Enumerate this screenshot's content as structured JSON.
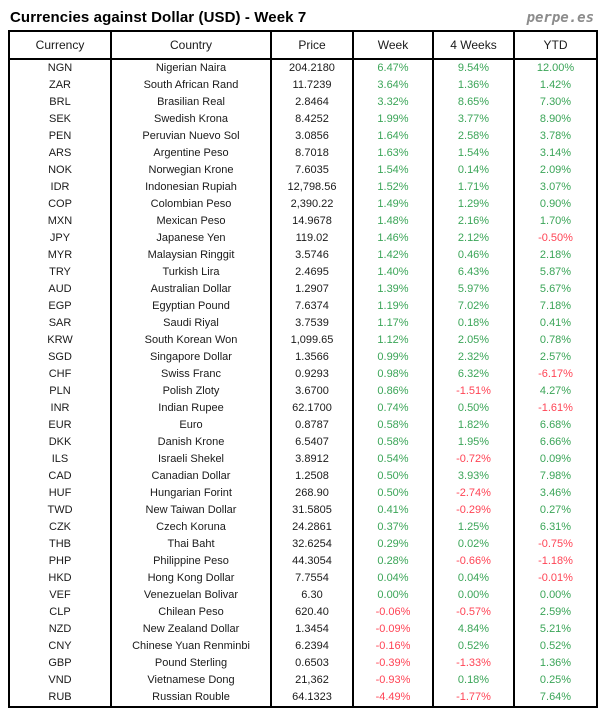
{
  "header": {
    "title": "Currencies against Dollar (USD) - Week 7",
    "brand": "perpe.es"
  },
  "colors": {
    "positive": "#3BA558",
    "negative": "#FF4455",
    "text": "#1A1A1A",
    "border": "#000000",
    "brand_gray": "#8C8C8C"
  },
  "chart_data": {
    "type": "table",
    "title": "Currencies against Dollar (USD) - Week 7",
    "columns": [
      "Currency",
      "Country",
      "Price",
      "Week",
      "4 Weeks",
      "YTD"
    ],
    "rows": [
      [
        "NGN",
        "Nigerian Naira",
        "204.2180",
        "6.47%",
        "9.54%",
        "12.00%"
      ],
      [
        "ZAR",
        "South African Rand",
        "11.7239",
        "3.64%",
        "1.36%",
        "1.42%"
      ],
      [
        "BRL",
        "Brasilian Real",
        "2.8464",
        "3.32%",
        "8.65%",
        "7.30%"
      ],
      [
        "SEK",
        "Swedish Krona",
        "8.4252",
        "1.99%",
        "3.77%",
        "8.90%"
      ],
      [
        "PEN",
        "Peruvian Nuevo Sol",
        "3.0856",
        "1.64%",
        "2.58%",
        "3.78%"
      ],
      [
        "ARS",
        "Argentine Peso",
        "8.7018",
        "1.63%",
        "1.54%",
        "3.14%"
      ],
      [
        "NOK",
        "Norwegian Krone",
        "7.6035",
        "1.54%",
        "0.14%",
        "2.09%"
      ],
      [
        "IDR",
        "Indonesian Rupiah",
        "12,798.56",
        "1.52%",
        "1.71%",
        "3.07%"
      ],
      [
        "COP",
        "Colombian Peso",
        "2,390.22",
        "1.49%",
        "1.29%",
        "0.90%"
      ],
      [
        "MXN",
        "Mexican Peso",
        "14.9678",
        "1.48%",
        "2.16%",
        "1.70%"
      ],
      [
        "JPY",
        "Japanese Yen",
        "119.02",
        "1.46%",
        "2.12%",
        "-0.50%"
      ],
      [
        "MYR",
        "Malaysian Ringgit",
        "3.5746",
        "1.42%",
        "0.46%",
        "2.18%"
      ],
      [
        "TRY",
        "Turkish Lira",
        "2.4695",
        "1.40%",
        "6.43%",
        "5.87%"
      ],
      [
        "AUD",
        "Australian Dollar",
        "1.2907",
        "1.39%",
        "5.97%",
        "5.67%"
      ],
      [
        "EGP",
        "Egyptian Pound",
        "7.6374",
        "1.19%",
        "7.02%",
        "7.18%"
      ],
      [
        "SAR",
        "Saudi Riyal",
        "3.7539",
        "1.17%",
        "0.18%",
        "0.41%"
      ],
      [
        "KRW",
        "South Korean Won",
        "1,099.65",
        "1.12%",
        "2.05%",
        "0.78%"
      ],
      [
        "SGD",
        "Singapore Dollar",
        "1.3566",
        "0.99%",
        "2.32%",
        "2.57%"
      ],
      [
        "CHF",
        "Swiss Franc",
        "0.9293",
        "0.98%",
        "6.32%",
        "-6.17%"
      ],
      [
        "PLN",
        "Polish Zloty",
        "3.6700",
        "0.86%",
        "-1.51%",
        "4.27%"
      ],
      [
        "INR",
        "Indian Rupee",
        "62.1700",
        "0.74%",
        "0.50%",
        "-1.61%"
      ],
      [
        "EUR",
        "Euro",
        "0.8787",
        "0.58%",
        "1.82%",
        "6.68%"
      ],
      [
        "DKK",
        "Danish Krone",
        "6.5407",
        "0.58%",
        "1.95%",
        "6.66%"
      ],
      [
        "ILS",
        "Israeli Shekel",
        "3.8912",
        "0.54%",
        "-0.72%",
        "0.09%"
      ],
      [
        "CAD",
        "Canadian Dollar",
        "1.2508",
        "0.50%",
        "3.93%",
        "7.98%"
      ],
      [
        "HUF",
        "Hungarian Forint",
        "268.90",
        "0.50%",
        "-2.74%",
        "3.46%"
      ],
      [
        "TWD",
        "New Taiwan Dollar",
        "31.5805",
        "0.41%",
        "-0.29%",
        "0.27%"
      ],
      [
        "CZK",
        "Czech Koruna",
        "24.2861",
        "0.37%",
        "1.25%",
        "6.31%"
      ],
      [
        "THB",
        "Thai Baht",
        "32.6254",
        "0.29%",
        "0.02%",
        "-0.75%"
      ],
      [
        "PHP",
        "Philippine Peso",
        "44.3054",
        "0.28%",
        "-0.66%",
        "-1.18%"
      ],
      [
        "HKD",
        "Hong Kong Dollar",
        "7.7554",
        "0.04%",
        "0.04%",
        "-0.01%"
      ],
      [
        "VEF",
        "Venezuelan Bolivar",
        "6.30",
        "0.00%",
        "0.00%",
        "0.00%"
      ],
      [
        "CLP",
        "Chilean Peso",
        "620.40",
        "-0.06%",
        "-0.57%",
        "2.59%"
      ],
      [
        "NZD",
        "New Zealand Dollar",
        "1.3454",
        "-0.09%",
        "4.84%",
        "5.21%"
      ],
      [
        "CNY",
        "Chinese Yuan Renminbi",
        "6.2394",
        "-0.16%",
        "0.52%",
        "0.52%"
      ],
      [
        "GBP",
        "Pound Sterling",
        "0.6503",
        "-0.39%",
        "-1.33%",
        "1.36%"
      ],
      [
        "VND",
        "Vietnamese Dong",
        "21,362",
        "-0.93%",
        "0.18%",
        "0.25%"
      ],
      [
        "RUB",
        "Russian Rouble",
        "64.1323",
        "-4.49%",
        "-1.77%",
        "7.64%"
      ]
    ]
  }
}
